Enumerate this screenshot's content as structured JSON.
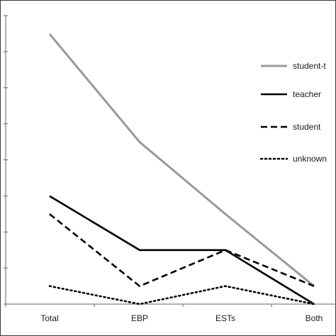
{
  "chart_data": {
    "type": "line",
    "title": "",
    "xlabel": "",
    "ylabel": "",
    "categories": [
      "Total",
      "EBP",
      "ESTs",
      "Both"
    ],
    "ylim": [
      0,
      15
    ],
    "grid": false,
    "legend_position": "right",
    "series": [
      {
        "name": "student-t",
        "values": [
          15,
          9,
          5,
          1
        ],
        "color": "#999999",
        "dash": "solid"
      },
      {
        "name": "teacher",
        "values": [
          6,
          3,
          3,
          0
        ],
        "color": "#000000",
        "dash": "solid"
      },
      {
        "name": "student",
        "values": [
          5,
          1,
          3,
          1
        ],
        "color": "#000000",
        "dash": "dashed"
      },
      {
        "name": "unknown",
        "values": [
          1,
          0,
          1,
          0
        ],
        "color": "#000000",
        "dash": "dotted"
      }
    ]
  }
}
